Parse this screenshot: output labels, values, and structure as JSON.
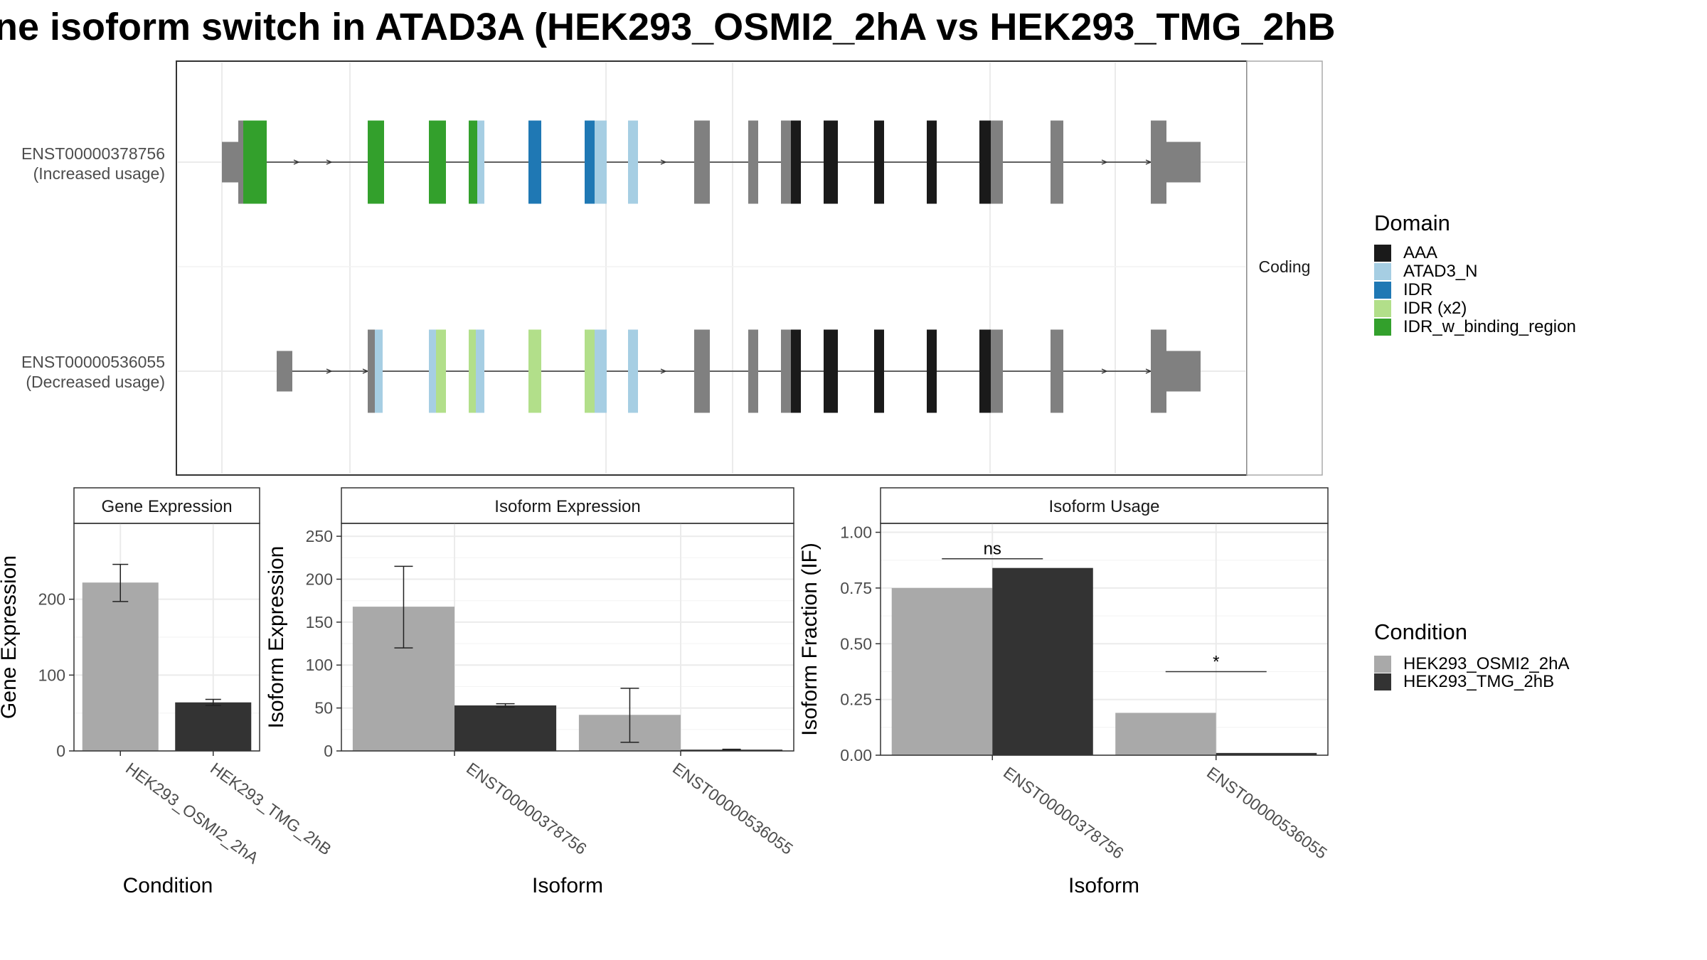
{
  "title": "ne isoform switch in ATAD3A (HEK293_OSMI2_2hA vs HEK293_TMG_2hB",
  "transcripts": {
    "facet_label": "Coding",
    "rows": [
      {
        "id": "ENST00000378756",
        "note": "(Increased usage)"
      },
      {
        "id": "ENST00000536055",
        "note": "(Decreased usage)"
      }
    ]
  },
  "legends": {
    "domain": {
      "title": "Domain",
      "items": [
        {
          "label": "AAA",
          "color": "#1a1a1a"
        },
        {
          "label": "ATAD3_N",
          "color": "#a6cee3"
        },
        {
          "label": "IDR",
          "color": "#1f78b4"
        },
        {
          "label": "IDR (x2)",
          "color": "#b2df8a"
        },
        {
          "label": "IDR_w_binding_region",
          "color": "#33a02c"
        }
      ]
    },
    "condition": {
      "title": "Condition",
      "items": [
        {
          "label": "HEK293_OSMI2_2hA",
          "color": "#a9a9a9"
        },
        {
          "label": "HEK293_TMG_2hB",
          "color": "#333333"
        }
      ]
    }
  },
  "chart_data": [
    {
      "type": "bar",
      "title": "Gene Expression",
      "xlabel": "Condition",
      "ylabel": "Gene Expression",
      "categories": [
        "HEK293_OSMI2_2hA",
        "HEK293_TMG_2hB"
      ],
      "values": [
        222,
        64
      ],
      "error_low": [
        197,
        60
      ],
      "error_high": [
        246,
        68
      ],
      "ylim": [
        0,
        300
      ],
      "yticks": [
        0,
        100,
        200
      ],
      "grid": true
    },
    {
      "type": "bar",
      "title": "Isoform Expression",
      "xlabel": "Isoform",
      "ylabel": "Isoform Expression",
      "categories": [
        "ENST00000378756",
        "ENST00000536055"
      ],
      "series": [
        {
          "name": "HEK293_OSMI2_2hA",
          "values": [
            168,
            42
          ],
          "error_low": [
            120,
            10
          ],
          "error_high": [
            215,
            73
          ]
        },
        {
          "name": "HEK293_TMG_2hB",
          "values": [
            53,
            1.5
          ],
          "error_low": [
            51,
            1
          ],
          "error_high": [
            55,
            2
          ]
        }
      ],
      "ylim": [
        0,
        265
      ],
      "yticks": [
        0,
        50,
        100,
        150,
        200,
        250
      ],
      "grid": true
    },
    {
      "type": "bar",
      "title": "Isoform Usage",
      "xlabel": "Isoform",
      "ylabel": "Isoform Fraction (IF)",
      "categories": [
        "ENST00000378756",
        "ENST00000536055"
      ],
      "series": [
        {
          "name": "HEK293_OSMI2_2hA",
          "values": [
            0.75,
            0.19
          ]
        },
        {
          "name": "HEK293_TMG_2hB",
          "values": [
            0.84,
            0.01
          ]
        }
      ],
      "significance": [
        "ns",
        "*"
      ],
      "ylim": [
        0,
        1.04
      ],
      "yticks": [
        "0.00",
        "0.25",
        "0.50",
        "0.75",
        "1.00"
      ],
      "grid": true
    }
  ]
}
